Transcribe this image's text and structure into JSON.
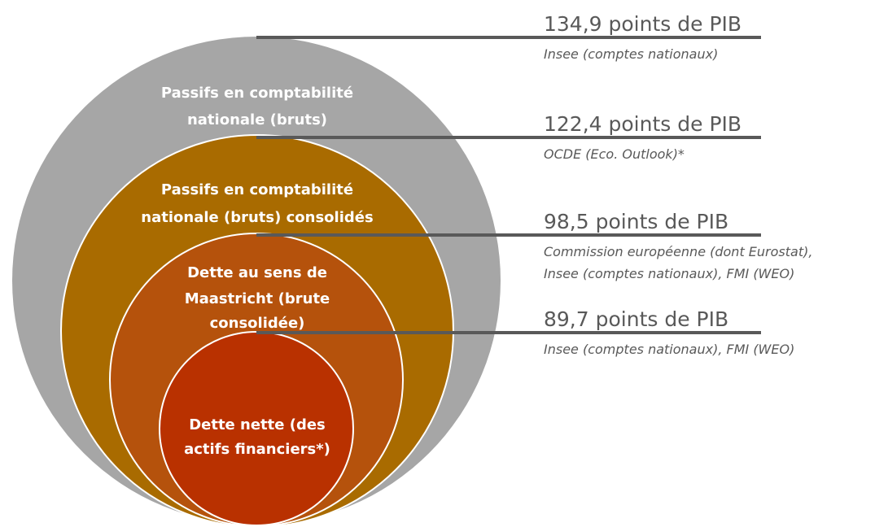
{
  "circles": [
    {
      "lines": [
        "Passifs en comptabilité",
        "nationale (bruts)"
      ]
    },
    {
      "lines": [
        "Passifs en comptabilité",
        "nationale (bruts) consolidés"
      ]
    },
    {
      "lines": [
        "Dette au sens de",
        "Maastricht (brute",
        "consolidée)"
      ]
    },
    {
      "lines": [
        "Dette nette (des",
        "actifs financiers*)"
      ]
    }
  ],
  "measures": [
    {
      "value": "134,9 points de PIB",
      "source": [
        "Insee (comptes nationaux)"
      ]
    },
    {
      "value": "122,4 points de PIB",
      "source": [
        "OCDE (Eco. Outlook)*"
      ]
    },
    {
      "value": "98,5 points de PIB",
      "source": [
        "Commission européenne (dont Eurostat),",
        "Insee (comptes nationaux), FMI (WEO)"
      ]
    },
    {
      "value": "89,7 points de PIB",
      "source": [
        "Insee (comptes nationaux), FMI (WEO)"
      ]
    }
  ]
}
